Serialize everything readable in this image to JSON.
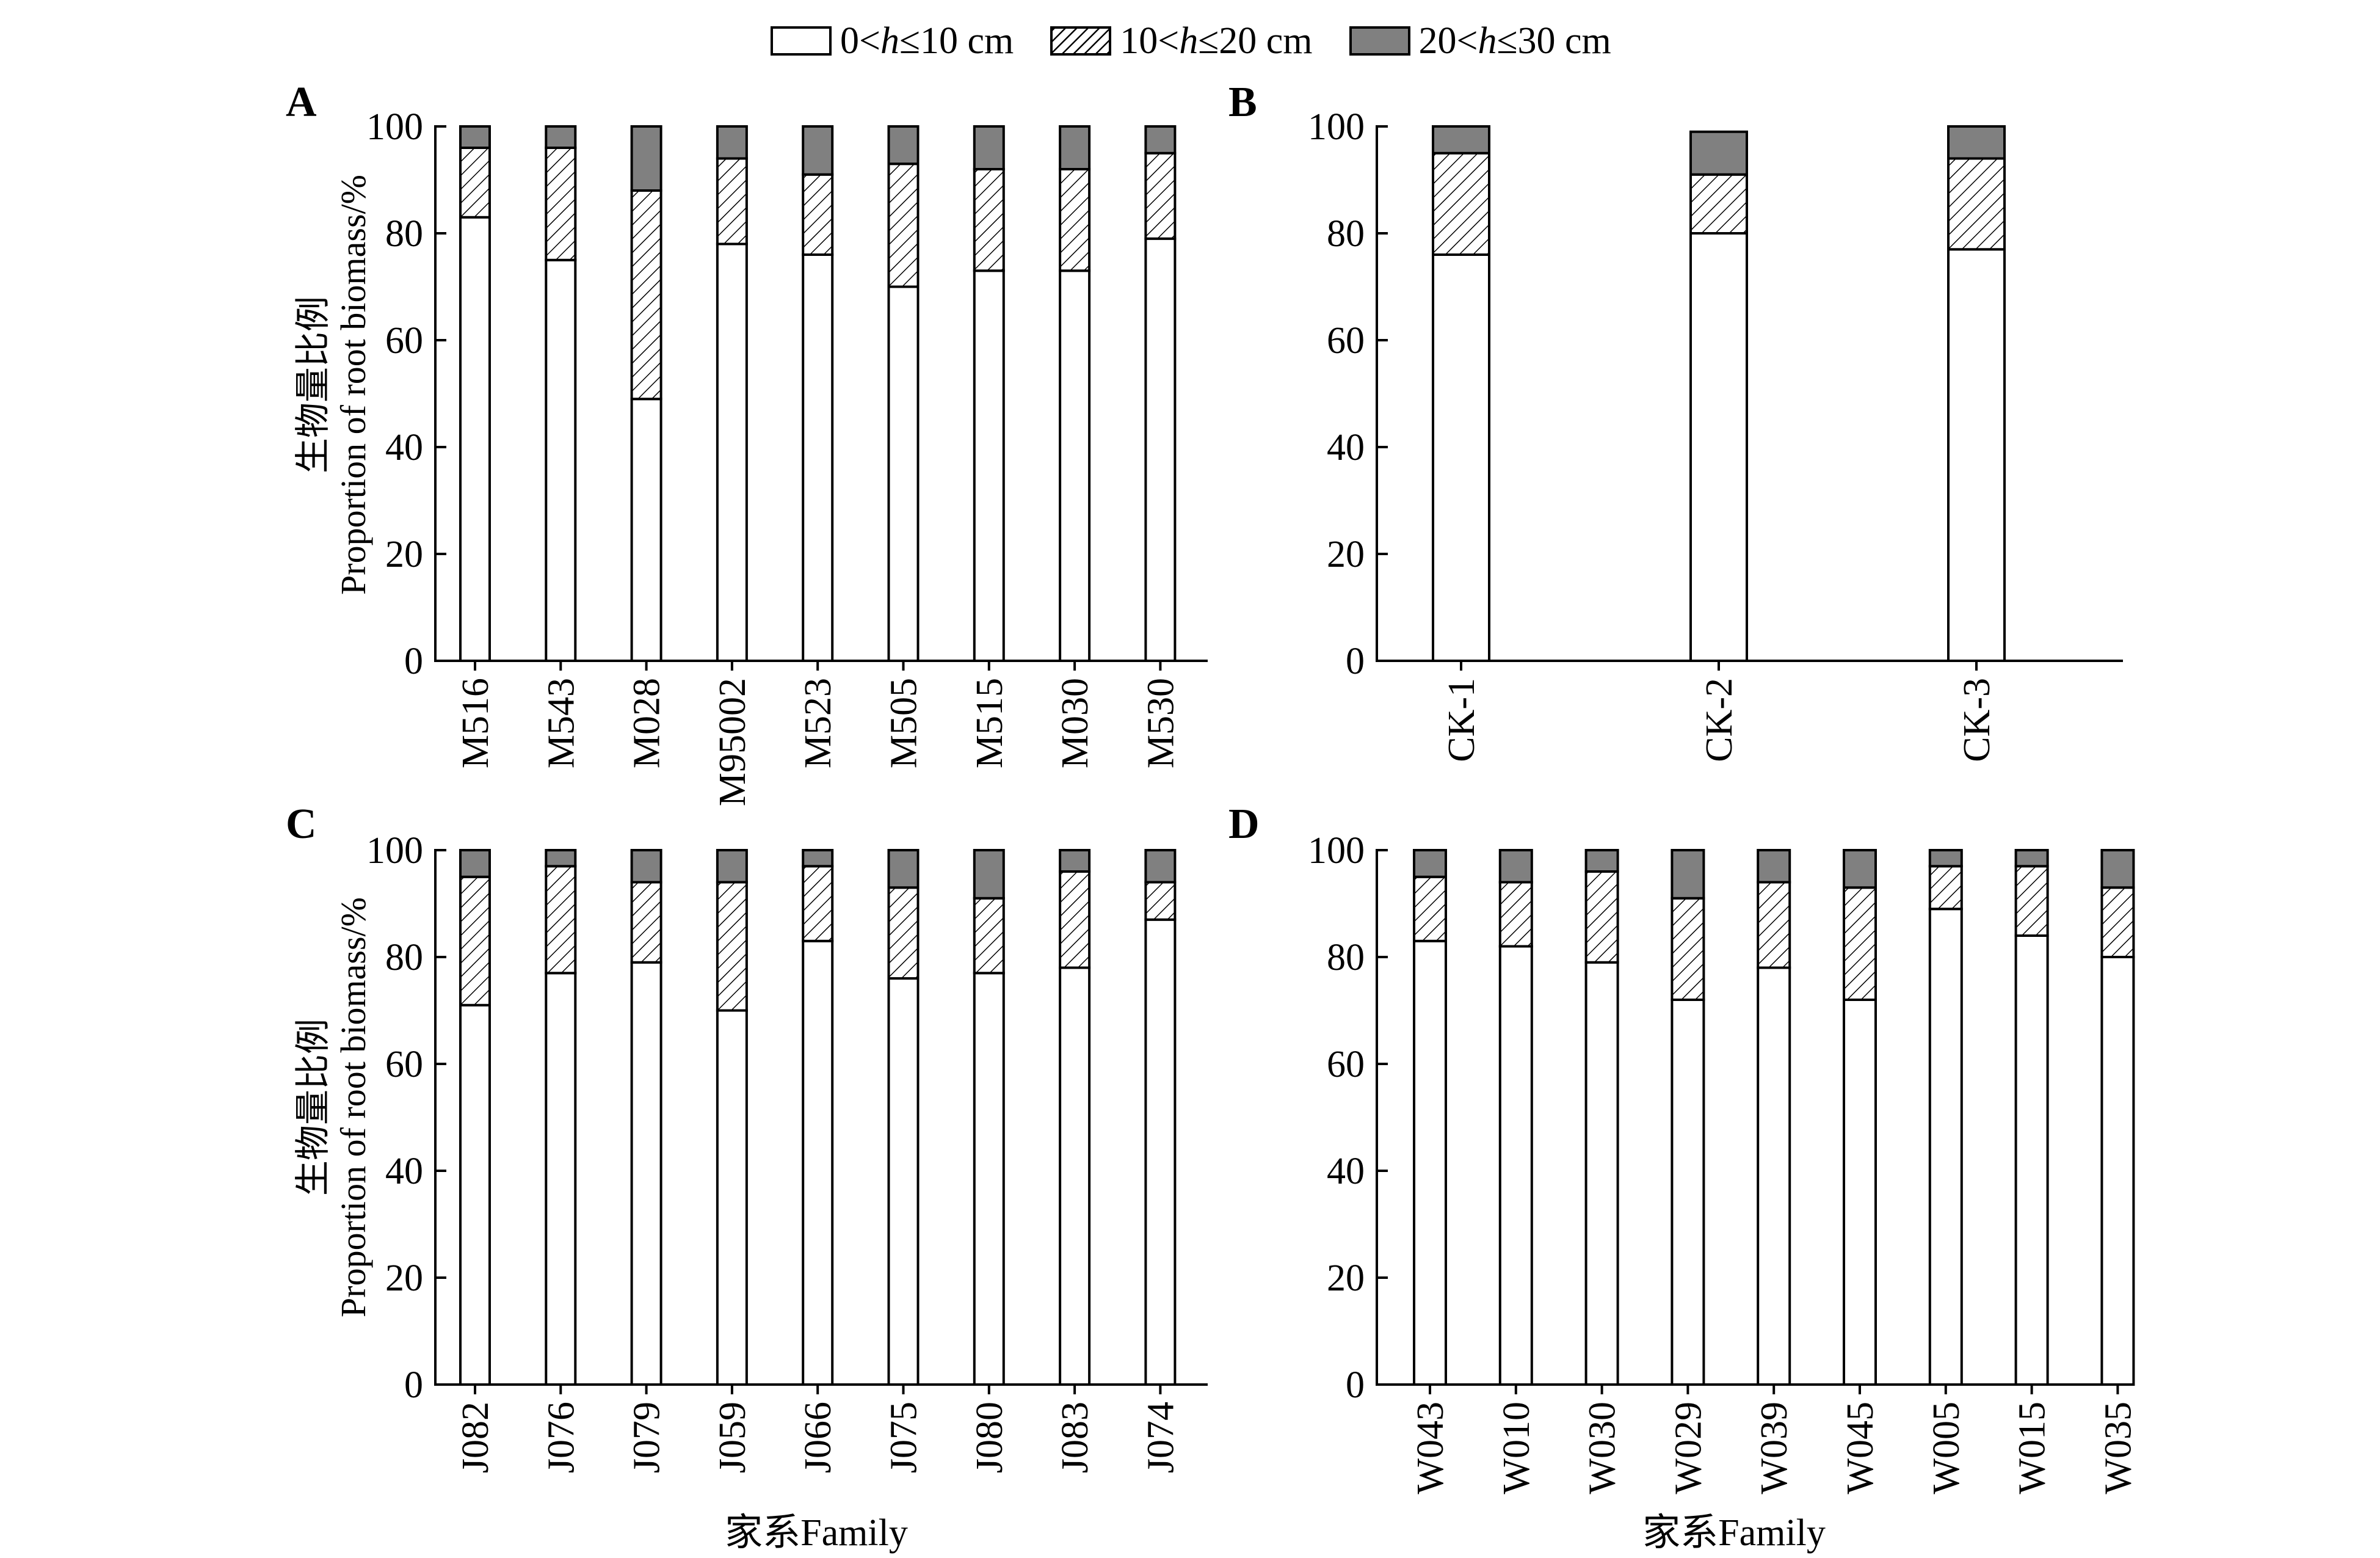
{
  "legend": {
    "items": [
      {
        "label": "0<h≤10 cm",
        "prefix": "0<",
        "var": "h",
        "suffix": "≤10 cm",
        "color": "#ffffff",
        "pattern": "none"
      },
      {
        "label": "10<h≤20 cm",
        "prefix": "10<",
        "var": "h",
        "suffix": "≤20 cm",
        "color": "#ffffff",
        "pattern": "hatch"
      },
      {
        "label": "20<h≤30 cm",
        "prefix": "20<",
        "var": "h",
        "suffix": "≤30 cm",
        "color": "#808080",
        "pattern": "none"
      }
    ]
  },
  "ylabel_cn": "生物量比例",
  "ylabel_en": "Proportion of root biomass/%",
  "xlabel": "家系Family",
  "chart_data": [
    {
      "type": "bar",
      "stacked": true,
      "panel": "A",
      "categories": [
        "M516",
        "M543",
        "M028",
        "M95002",
        "M523",
        "M505",
        "M515",
        "M030",
        "M530"
      ],
      "series": [
        {
          "name": "0<h≤10 cm",
          "values": [
            83,
            75,
            49,
            78,
            76,
            70,
            73,
            73,
            79
          ]
        },
        {
          "name": "10<h≤20 cm",
          "values": [
            13,
            21,
            39,
            16,
            15,
            23,
            19,
            19,
            16
          ]
        },
        {
          "name": "20<h≤30 cm",
          "values": [
            4,
            4,
            12,
            6,
            9,
            7,
            8,
            8,
            5
          ]
        }
      ],
      "yticks": [
        0,
        20,
        40,
        60,
        80,
        100
      ],
      "ylim": [
        0,
        100
      ]
    },
    {
      "type": "bar",
      "stacked": true,
      "panel": "B",
      "categories": [
        "CK-1",
        "CK-2",
        "CK-3"
      ],
      "series": [
        {
          "name": "0<h≤10 cm",
          "values": [
            76,
            80,
            77
          ]
        },
        {
          "name": "10<h≤20 cm",
          "values": [
            19,
            11,
            17
          ]
        },
        {
          "name": "20<h≤30 cm",
          "values": [
            5,
            8,
            6
          ]
        }
      ],
      "yticks": [
        0,
        20,
        40,
        60,
        80,
        100
      ],
      "ylim": [
        0,
        100
      ]
    },
    {
      "type": "bar",
      "stacked": true,
      "panel": "C",
      "categories": [
        "J082",
        "J076",
        "J079",
        "J059",
        "J066",
        "J075",
        "J080",
        "J083",
        "J074"
      ],
      "series": [
        {
          "name": "0<h≤10 cm",
          "values": [
            71,
            77,
            79,
            70,
            83,
            76,
            77,
            78,
            87
          ]
        },
        {
          "name": "10<h≤20 cm",
          "values": [
            24,
            20,
            15,
            24,
            14,
            17,
            14,
            18,
            7
          ]
        },
        {
          "name": "20<h≤30 cm",
          "values": [
            5,
            3,
            6,
            6,
            3,
            7,
            9,
            4,
            6
          ]
        }
      ],
      "yticks": [
        0,
        20,
        40,
        60,
        80,
        100
      ],
      "ylim": [
        0,
        100
      ]
    },
    {
      "type": "bar",
      "stacked": true,
      "panel": "D",
      "categories": [
        "W043",
        "W010",
        "W030",
        "W029",
        "W039",
        "W045",
        "W005",
        "W015",
        "W035"
      ],
      "series": [
        {
          "name": "0<h≤10 cm",
          "values": [
            83,
            82,
            79,
            72,
            78,
            72,
            89,
            84,
            80
          ]
        },
        {
          "name": "10<h≤20 cm",
          "values": [
            12,
            12,
            17,
            19,
            16,
            21,
            8,
            13,
            13
          ]
        },
        {
          "name": "20<h≤30 cm",
          "values": [
            5,
            6,
            4,
            9,
            6,
            7,
            3,
            3,
            7
          ]
        }
      ],
      "yticks": [
        0,
        20,
        40,
        60,
        80,
        100
      ],
      "ylim": [
        0,
        100
      ]
    }
  ]
}
